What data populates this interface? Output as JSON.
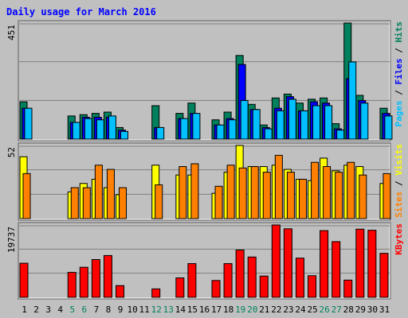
{
  "colors": {
    "page_bg": "#c0c0c0",
    "panel_bg": "#c0c0c0",
    "grid": "#808080",
    "title": "#0000ff",
    "hits": "#00805c",
    "files": "#0000ff",
    "pages": "#00c0ff",
    "visits": "#ffff00",
    "sites": "#ff8000",
    "kbytes": "#ff0000",
    "weekend": "#00805c",
    "weekday": "#000000"
  },
  "chart_data": {
    "type": "bar",
    "title": "Daily usage for March 2016",
    "categories": [
      "1",
      "2",
      "3",
      "4",
      "5",
      "6",
      "7",
      "8",
      "9",
      "10",
      "11",
      "12",
      "13",
      "14",
      "15",
      "16",
      "17",
      "18",
      "19",
      "20",
      "21",
      "22",
      "23",
      "24",
      "25",
      "26",
      "27",
      "28",
      "29",
      "30",
      "31"
    ],
    "weekend_days": [
      "5",
      "6",
      "12",
      "13",
      "19",
      "20",
      "26",
      "27"
    ],
    "grid": true,
    "panels": [
      {
        "max_label": "451",
        "ylim": [
          0,
          451
        ],
        "right_labels": [
          {
            "text": "Pages",
            "color": "#00c0ff"
          },
          {
            "text": " / ",
            "color": "#000000"
          },
          {
            "text": "Files",
            "color": "#0000ff"
          },
          {
            "text": " / ",
            "color": "#000000"
          },
          {
            "text": "Hits",
            "color": "#00805c"
          }
        ],
        "series": [
          {
            "name": "Hits",
            "color": "#00805c",
            "values": [
              145,
              0,
              0,
              0,
              90,
              95,
              100,
              105,
              45,
              0,
              0,
              130,
              0,
              100,
              140,
              0,
              75,
              105,
              325,
              135,
              55,
              160,
              175,
              140,
              155,
              160,
              60,
              451,
              170,
              0,
              120
            ]
          },
          {
            "name": "Files",
            "color": "#0000ff",
            "values": [
              120,
              0,
              0,
              0,
              65,
              85,
              85,
              85,
              35,
              0,
              0,
              45,
              0,
              80,
              100,
              0,
              55,
              80,
              290,
              115,
              45,
              120,
              165,
              110,
              145,
              140,
              40,
              235,
              150,
              0,
              100
            ]
          },
          {
            "name": "Pages",
            "color": "#00c0ff",
            "values": [
              120,
              0,
              0,
              0,
              65,
              80,
              75,
              90,
              30,
              0,
              0,
              45,
              0,
              80,
              100,
              0,
              55,
              75,
              150,
              115,
              40,
              110,
              155,
              110,
              130,
              130,
              35,
              300,
              140,
              0,
              90
            ]
          }
        ]
      },
      {
        "max_label": "52",
        "ylim": [
          0,
          52
        ],
        "right_labels": [
          {
            "text": "Sites",
            "color": "#ff8000"
          },
          {
            "text": " / ",
            "color": "#000000"
          },
          {
            "text": "Visits",
            "color": "#ffff00"
          }
        ],
        "series": [
          {
            "name": "Visits",
            "color": "#ffff00",
            "values": [
              44,
              0,
              0,
              0,
              19,
              25,
              28,
              22,
              17,
              0,
              0,
              38,
              0,
              31,
              31,
              0,
              18,
              33,
              52,
              37,
              37,
              38,
              35,
              28,
              27,
              43,
              34,
              38,
              37,
              0,
              25
            ]
          },
          {
            "name": "Sites",
            "color": "#ff8000",
            "values": [
              32,
              0,
              0,
              0,
              22,
              22,
              38,
              35,
              22,
              0,
              0,
              24,
              0,
              37,
              39,
              0,
              23,
              38,
              36,
              37,
              33,
              45,
              33,
              28,
              40,
              37,
              33,
              40,
              31,
              0,
              32
            ]
          }
        ]
      },
      {
        "max_label": "19737",
        "ylim": [
          0,
          19737
        ],
        "right_labels": [
          {
            "text": "KBytes",
            "color": "#ff0000"
          }
        ],
        "series": [
          {
            "name": "KBytes",
            "color": "#ff0000",
            "values": [
              9300,
              0,
              0,
              0,
              6800,
              8200,
              10300,
              11400,
              3200,
              0,
              0,
              2300,
              0,
              5300,
              9200,
              0,
              4600,
              9200,
              12900,
              11000,
              5800,
              19737,
              18700,
              10700,
              5900,
              18200,
              15200,
              4700,
              18600,
              18300,
              12000
            ]
          }
        ]
      }
    ]
  }
}
